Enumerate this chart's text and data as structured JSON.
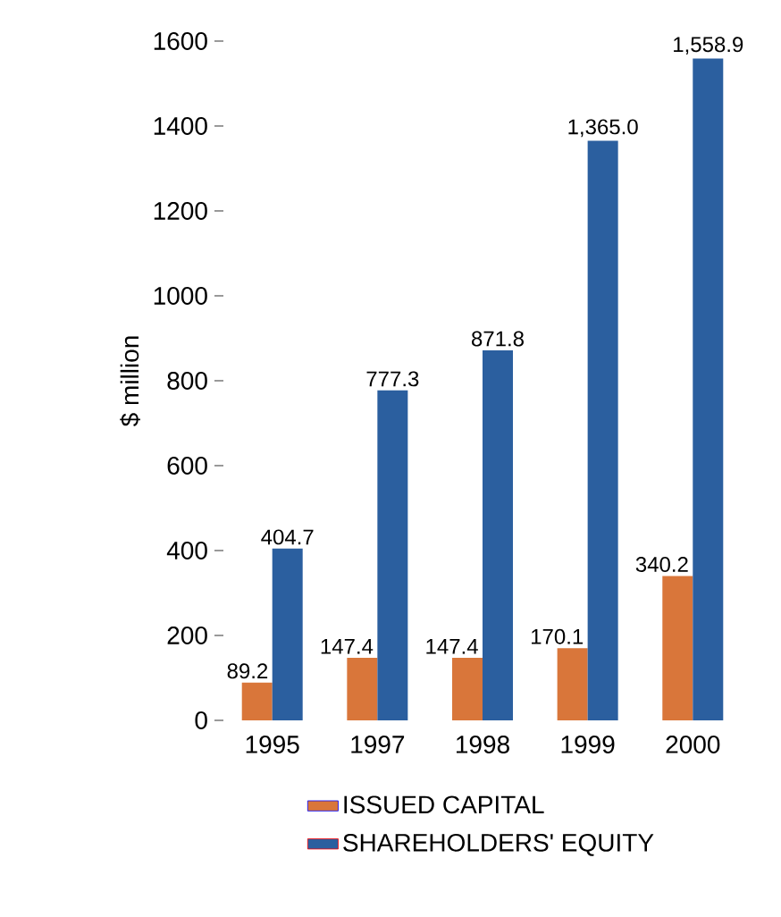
{
  "chart_data": {
    "type": "bar",
    "ylabel": "$ million",
    "categories": [
      "1995",
      "1997",
      "1998",
      "1999",
      "2000"
    ],
    "series": [
      {
        "name": "ISSUED CAPITAL",
        "color": "#d9763a",
        "values": [
          89.2,
          147.4,
          147.4,
          170.1,
          340.2
        ],
        "value_labels": [
          "89.2",
          "147.4",
          "147.4",
          "170.1",
          "340.2"
        ]
      },
      {
        "name": "SHAREHOLDERS' EQUITY",
        "color": "#2b5f9f",
        "values": [
          404.7,
          777.3,
          871.8,
          1365.0,
          1558.9
        ],
        "value_labels": [
          "404.7",
          "777.3",
          "871.8",
          "1,365.0",
          "1,558.9"
        ]
      }
    ],
    "ylim": [
      0,
      1600
    ],
    "yticks": [
      0,
      200,
      400,
      600,
      800,
      1000,
      1200,
      1400,
      1600
    ],
    "grid": false,
    "legend": "bottom"
  }
}
